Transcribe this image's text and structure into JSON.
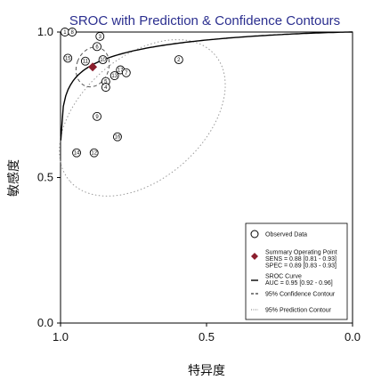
{
  "chart_data": {
    "type": "scatter",
    "title": "SROC with Prediction & Confidence Contours",
    "xlabel": "特异度",
    "ylabel": "敏感度",
    "x_reversed": true,
    "xlim": [
      1.0,
      0.0
    ],
    "ylim": [
      0.0,
      1.0
    ],
    "xticks": [
      "1.0",
      "0.5",
      "0.0"
    ],
    "yticks": [
      "1.0",
      "0.5",
      "0.0"
    ],
    "grid": false,
    "legend_position": "bottom-right",
    "observed": [
      {
        "id": "1",
        "spec": 0.985,
        "sens": 1.0
      },
      {
        "id": "8",
        "spec": 0.96,
        "sens": 1.0
      },
      {
        "id": "3",
        "spec": 0.865,
        "sens": 0.985
      },
      {
        "id": "6",
        "spec": 0.875,
        "sens": 0.95
      },
      {
        "id": "15",
        "spec": 0.975,
        "sens": 0.91
      },
      {
        "id": "11",
        "spec": 0.915,
        "sens": 0.9
      },
      {
        "id": "10",
        "spec": 0.855,
        "sens": 0.905
      },
      {
        "id": "2",
        "spec": 0.595,
        "sens": 0.905
      },
      {
        "id": "17",
        "spec": 0.795,
        "sens": 0.87
      },
      {
        "id": "7",
        "spec": 0.775,
        "sens": 0.86
      },
      {
        "id": "13",
        "spec": 0.815,
        "sens": 0.85
      },
      {
        "id": "5",
        "spec": 0.845,
        "sens": 0.83
      },
      {
        "id": "4",
        "spec": 0.845,
        "sens": 0.81
      },
      {
        "id": "9",
        "spec": 0.875,
        "sens": 0.71
      },
      {
        "id": "16",
        "spec": 0.805,
        "sens": 0.64
      },
      {
        "id": "14",
        "spec": 0.945,
        "sens": 0.585
      },
      {
        "id": "12",
        "spec": 0.885,
        "sens": 0.585
      }
    ],
    "summary_point": {
      "spec": 0.89,
      "sens": 0.88
    },
    "legend": [
      {
        "marker": "circle",
        "label": "Observed Data"
      },
      {
        "marker": "diamond",
        "label": "Summary Operating Point",
        "sub": [
          "SENS = 0.88 [0.81 - 0.93]",
          "SPEC = 0.89 [0.83 - 0.93]"
        ]
      },
      {
        "marker": "solid-line",
        "label": "SROC Curve",
        "sub": [
          "AUC = 0.95 [0.92 - 0.96]"
        ]
      },
      {
        "marker": "dashed-line",
        "label": "95% Confidence Contour"
      },
      {
        "marker": "dotted-line",
        "label": "95% Prediction Contour"
      }
    ],
    "colors": {
      "title": "#2b2f8f",
      "summary": "#8b1e2d",
      "curve": "#000000",
      "prediction": "#9a9a9a",
      "confidence": "#555555"
    }
  }
}
